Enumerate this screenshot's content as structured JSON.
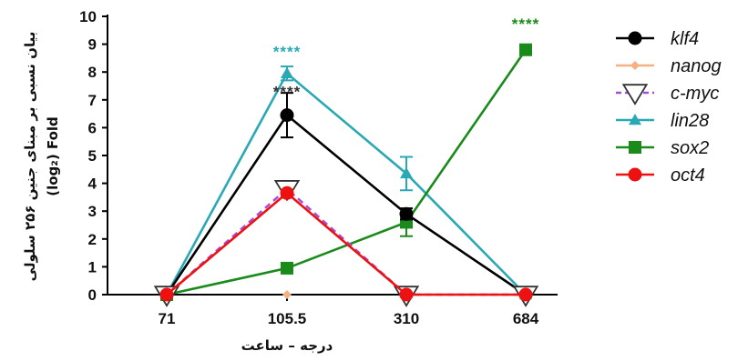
{
  "chart_data": {
    "type": "line",
    "xlabel": "درجه – ساعت",
    "ylabel_line1": "بیان نسبی بر مبنای جنین ۲۵۶ سلولی",
    "ylabel_line2": "(log₂) Fold",
    "categories": [
      "71",
      "105.5",
      "310",
      "684"
    ],
    "ylim": [
      0,
      10
    ],
    "yticks": [
      "0",
      "1",
      "2",
      "3",
      "4",
      "5",
      "6",
      "7",
      "8",
      "9",
      "10"
    ],
    "legend_position": "right",
    "series": [
      {
        "name": "klf4",
        "color": "#000000",
        "marker": "circle",
        "dash": false,
        "values": [
          0,
          6.45,
          2.9,
          0
        ],
        "errors": [
          0,
          0.8,
          0.2,
          0
        ]
      },
      {
        "name": "nanog",
        "color": "#f4b183",
        "marker": "diamond",
        "dash": false,
        "values": [
          null,
          0,
          null,
          null
        ],
        "errors": [
          0,
          0,
          0,
          0
        ]
      },
      {
        "name": "c-myc",
        "color": "#a64dd9",
        "marker": "triangle-down",
        "dash": true,
        "values": [
          0,
          3.8,
          0,
          0
        ],
        "errors": [
          0,
          0,
          0,
          0
        ]
      },
      {
        "name": "lin28",
        "color": "#2aa8b5",
        "marker": "triangle-up",
        "dash": false,
        "values": [
          0,
          7.95,
          4.35,
          0
        ],
        "errors": [
          0,
          0.25,
          0.6,
          0
        ]
      },
      {
        "name": "sox2",
        "color": "#1a8a1a",
        "marker": "square",
        "dash": false,
        "values": [
          0,
          0.95,
          2.6,
          8.8
        ],
        "errors": [
          0,
          0.15,
          0.5,
          0
        ]
      },
      {
        "name": "oct4",
        "color": "#ee1111",
        "marker": "circle",
        "dash": false,
        "values": [
          0,
          3.65,
          0,
          0
        ],
        "errors": [
          0,
          0.1,
          0,
          0
        ]
      }
    ],
    "annotations": [
      {
        "text": "****",
        "category": "105.5",
        "y": 8.55,
        "color": "#2aa8b5"
      },
      {
        "text": "****",
        "category": "105.5",
        "y": 7.1,
        "color": "#333333"
      },
      {
        "text": "****",
        "category": "684",
        "y": 9.55,
        "color": "#1a8a1a"
      }
    ]
  }
}
